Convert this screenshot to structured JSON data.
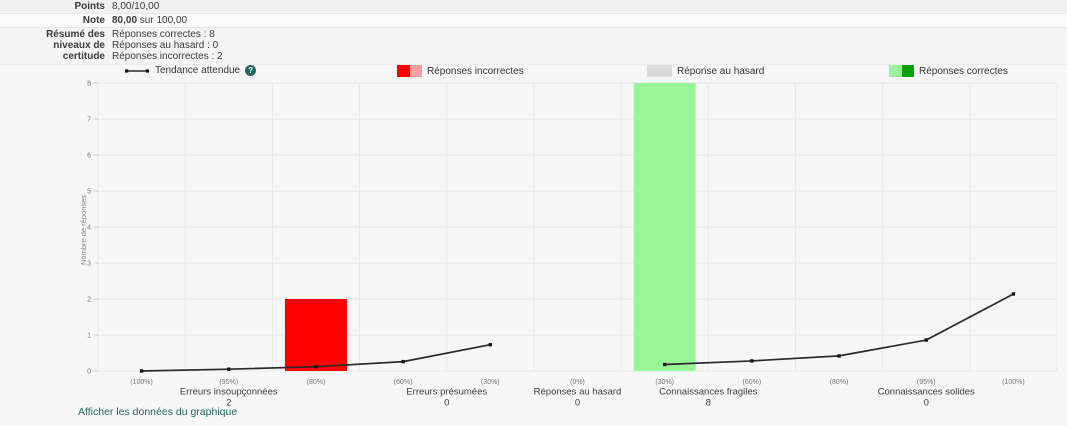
{
  "colors": {
    "page_bg": "#f7f7f7",
    "accent_teal": "#20695e",
    "grid": "#e9e9e9",
    "trend_line": "#2a2a2a",
    "incorrect_red": "#ff0000",
    "incorrect_red_light": "#ff9e9e",
    "random_gray": "#dadada",
    "correct_green_light": "#98f598",
    "correct_green_dark": "#0aa00a"
  },
  "summary": {
    "points": {
      "label": "Points",
      "value": "8,00/10,00"
    },
    "grade": {
      "label": "Note",
      "value_bold": "80,00",
      "value_suffix": " sur 100,00"
    },
    "certainty": {
      "label": "Résumé des niveaux de certitude",
      "lines": [
        "Réponses correctes : 8",
        "Réponses au hasard : 0",
        "Réponses incorrectes : 2"
      ]
    }
  },
  "legend": {
    "help_glyph": "?",
    "items": [
      {
        "label": "Tendance attendue",
        "type": "line"
      },
      {
        "label": "Réponses incorrectes",
        "type": "swatch",
        "colors": [
          "#ff0000",
          "#ff9e9e"
        ]
      },
      {
        "label": "Réponse au hasard",
        "type": "swatch",
        "colors": [
          "#dadada",
          "#dadada"
        ]
      },
      {
        "label": "Réponses correctes",
        "type": "swatch",
        "colors": [
          "#98f598",
          "#0aa00a"
        ]
      }
    ]
  },
  "chart_data": {
    "type": "bar",
    "title": "",
    "xlabel": "",
    "ylabel": "Nombre de réponses",
    "ylim": [
      0,
      8
    ],
    "yticks": [
      0,
      1,
      2,
      3,
      4,
      5,
      6,
      7,
      8
    ],
    "grid": true,
    "legend_position": "top",
    "x_tick_labels": [
      "(100%)",
      "(95%)",
      "(80%)",
      "(60%)",
      "(30%)",
      "(0%)",
      "(30%)",
      "(60%)",
      "(80%)",
      "(95%)",
      "(100%)"
    ],
    "groups": [
      {
        "label": "Erreurs insoupçonnées",
        "count": 2,
        "ticks": [
          0,
          2
        ]
      },
      {
        "label": "Erreurs présumées",
        "count": 0,
        "ticks": [
          3,
          4
        ]
      },
      {
        "label": "Réponses au hasard",
        "count": 0,
        "ticks": [
          5,
          5
        ]
      },
      {
        "label": "Connaissances fragiles",
        "count": 8,
        "ticks": [
          6,
          7
        ]
      },
      {
        "label": "Connaissances solides",
        "count": 0,
        "ticks": [
          8,
          10
        ]
      }
    ],
    "bars": [
      {
        "tick": 2,
        "value": 2,
        "color": "#ff0000",
        "series": "Réponses incorrectes"
      },
      {
        "tick": 6,
        "value": 8,
        "color": "#98f598",
        "series": "Réponses correctes"
      }
    ],
    "trend": {
      "name": "Tendance attendue",
      "color": "#2a2a2a",
      "segments": [
        [
          {
            "tick": 0,
            "value": 0.0
          },
          {
            "tick": 1,
            "value": 0.05
          },
          {
            "tick": 2,
            "value": 0.12
          },
          {
            "tick": 3,
            "value": 0.26
          },
          {
            "tick": 4,
            "value": 0.73
          }
        ],
        [
          {
            "tick": 6,
            "value": 0.18
          },
          {
            "tick": 7,
            "value": 0.28
          },
          {
            "tick": 8,
            "value": 0.42
          },
          {
            "tick": 9,
            "value": 0.86
          },
          {
            "tick": 10,
            "value": 2.14
          }
        ]
      ]
    }
  },
  "footer": {
    "link_label": "Afficher les données du graphique"
  }
}
